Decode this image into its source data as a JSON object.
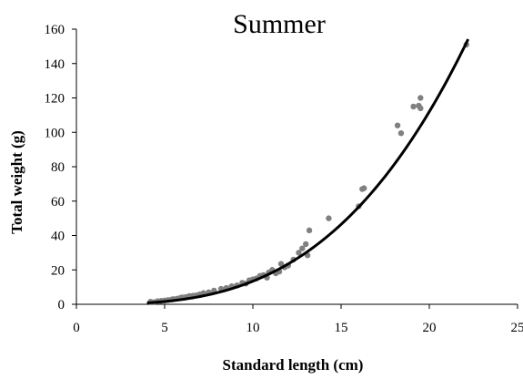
{
  "chart_data": {
    "type": "scatter",
    "title": "Summer",
    "xlabel": "Standard length (cm)",
    "ylabel": "Total weight (g)",
    "xlim": [
      0,
      25
    ],
    "ylim": [
      0,
      160
    ],
    "xticks": [
      "0",
      "5",
      "10",
      "15",
      "20",
      "25"
    ],
    "yticks": [
      "0",
      "20",
      "40",
      "60",
      "80",
      "100",
      "120",
      "140",
      "160"
    ],
    "grid": false,
    "legend": "none",
    "series": [
      {
        "kind": "points",
        "color": "#808080",
        "x": [
          4.2,
          4.4,
          4.6,
          4.8,
          5.0,
          5.2,
          5.4,
          5.5,
          5.7,
          5.9,
          6.0,
          6.2,
          6.4,
          6.6,
          6.8,
          7.0,
          7.2,
          7.5,
          7.8,
          8.2,
          8.5,
          8.8,
          9.1,
          9.4,
          9.6,
          9.8,
          10.0,
          10.2,
          10.4,
          10.6,
          10.8,
          10.9,
          11.1,
          11.3,
          11.5,
          11.6,
          11.8,
          12.0,
          12.3,
          12.6,
          12.8,
          13.0,
          13.1,
          13.2,
          14.3,
          16.0,
          16.2,
          16.3,
          18.2,
          18.4,
          19.1,
          19.4,
          19.5,
          19.5,
          22.1
        ],
        "y": [
          1.5,
          1.2,
          1.8,
          2.0,
          2.2,
          2.5,
          2.8,
          3.0,
          3.3,
          3.8,
          4.0,
          4.2,
          4.8,
          5.0,
          5.2,
          5.8,
          6.5,
          7.0,
          8.0,
          9.0,
          9.5,
          10.5,
          11.0,
          12.5,
          12.0,
          14.0,
          14.5,
          15.0,
          16.5,
          17.0,
          15.5,
          18.5,
          20.0,
          18.0,
          19.0,
          23.5,
          21.5,
          22.5,
          26.0,
          30.0,
          32.5,
          35.0,
          28.5,
          43.0,
          50.0,
          57.0,
          67.0,
          67.5,
          104.0,
          99.5,
          115.0,
          115.5,
          120.0,
          114.0,
          151.0
        ]
      },
      {
        "kind": "fit-curve",
        "color": "#000000",
        "a": 0.0117,
        "b": 3.06,
        "x_range": [
          4.0,
          22.2
        ]
      }
    ]
  }
}
